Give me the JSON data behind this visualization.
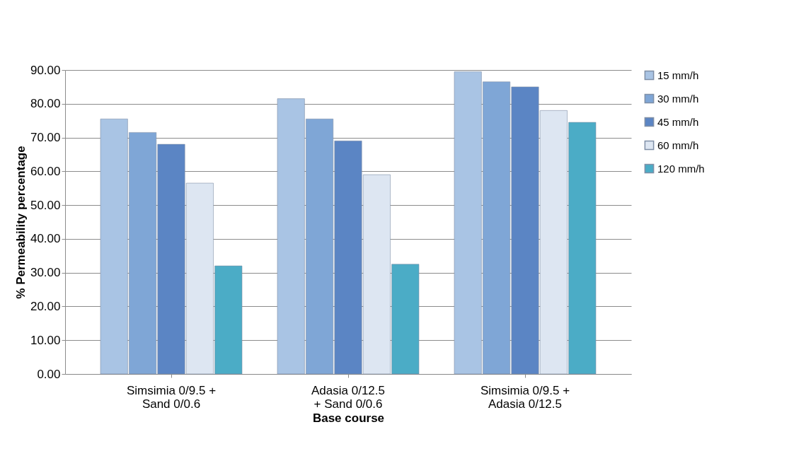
{
  "chart_data": {
    "type": "bar",
    "xlabel": "Base course",
    "ylabel": "% Permeability percentage",
    "categories": [
      "Simsimia 0/9.5 +\nSand  0/0.6",
      "Adasia  0/12.5\n+ Sand  0/0.6",
      "Simsimia 0/9.5 +\nAdasia  0/12.5"
    ],
    "series": [
      {
        "name": "15 mm/h",
        "color": "#a9c4e4",
        "values": [
          75.5,
          81.5,
          89.5
        ]
      },
      {
        "name": "30 mm/h",
        "color": "#7fa6d6",
        "values": [
          71.5,
          75.5,
          86.5
        ]
      },
      {
        "name": "45 mm/h",
        "color": "#5b85c4",
        "values": [
          68,
          69,
          85
        ]
      },
      {
        "name": "60 mm/h",
        "color": "#dde6f2",
        "values": [
          56.5,
          59,
          78
        ]
      },
      {
        "name": "120 mm/h",
        "color": "#4bacc6",
        "values": [
          32,
          32.5,
          74.5
        ]
      }
    ],
    "ylim": [
      0,
      90
    ],
    "yticks": [
      {
        "value": 0,
        "label": "0.00"
      },
      {
        "value": 10,
        "label": "10.00"
      },
      {
        "value": 20,
        "label": "20.00"
      },
      {
        "value": 30,
        "label": "30.00"
      },
      {
        "value": 40,
        "label": "40.00"
      },
      {
        "value": 50,
        "label": "50.00"
      },
      {
        "value": 60,
        "label": "60.00"
      },
      {
        "value": 70,
        "label": "70.00"
      },
      {
        "value": 80,
        "label": "80.00"
      },
      {
        "value": 90,
        "label": "90.00"
      }
    ],
    "grid": "y",
    "legend": "right"
  }
}
